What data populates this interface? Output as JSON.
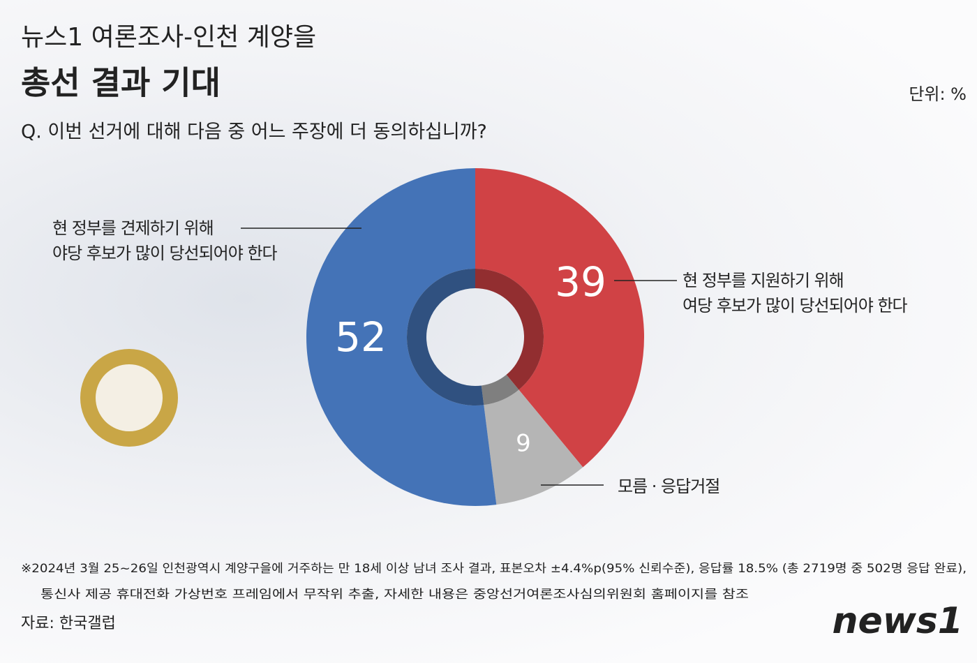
{
  "header": {
    "title_line1": "뉴스1 여론조사-인천 계양을",
    "title_line2": "총선 결과 기대",
    "unit": "단위: %",
    "question": "Q. 이번 선거에 대해 다음 중 어느 주장에 더 동의하십니까?"
  },
  "chart_data": {
    "type": "pie",
    "donut": true,
    "categories": [
      "현 정부를 지원하기 위해\n여당 후보가 많이 당선되어야 한다",
      "모름 · 응답거절",
      "현 정부를 견제하기 위해\n야당 후보가 많이 당선되어야 한다"
    ],
    "values": [
      39,
      9,
      52
    ],
    "colors": [
      "#d04245",
      "#b5b5b5",
      "#4473b7"
    ]
  },
  "footer": {
    "notes": [
      "※2024년 3월 25~26일 인천광역시 계양구을에 거주하는 만 18세 이상 남녀 조사 결과, 표본오차 ±4.4%p(95% 신뢰수준), 응답률 18.5% (총 2719명 중 502명 응답 완료),",
      "통신사 제공 휴대전화 가상번호 프레임에서 무작위 추출, 자세한 내용은 중앙선거여론조사심의위원회 홈페이지를 참조"
    ],
    "source": "자료: 한국갤럽",
    "logo": "news1"
  }
}
